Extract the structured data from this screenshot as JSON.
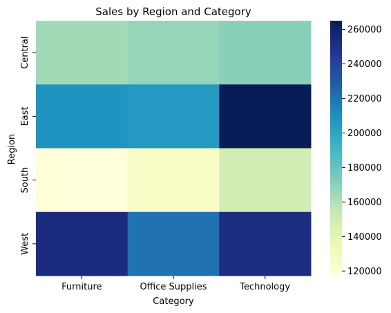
{
  "chart_data": {
    "type": "heatmap",
    "title": "Sales by Region and Category",
    "xlabel": "Category",
    "ylabel": "Region",
    "x_categories": [
      "Furniture",
      "Office Supplies",
      "Technology"
    ],
    "y_categories": [
      "Central",
      "East",
      "South",
      "West"
    ],
    "values": [
      [
        163797,
        167026,
        170417
      ],
      [
        208291,
        205516,
        264974
      ],
      [
        117299,
        125651,
        148772
      ],
      [
        252613,
        220853,
        251992
      ]
    ],
    "colorbar": {
      "min": 117299,
      "max": 264974,
      "ticks": [
        120000,
        140000,
        160000,
        180000,
        200000,
        220000,
        240000,
        260000
      ],
      "colormap": "YlGnBu",
      "stops": [
        "#ffffd9",
        "#edf8b1",
        "#c7e9b4",
        "#7fcdbb",
        "#41b6c4",
        "#1d91c0",
        "#225ea8",
        "#253494",
        "#081d58"
      ]
    },
    "grid": false
  }
}
